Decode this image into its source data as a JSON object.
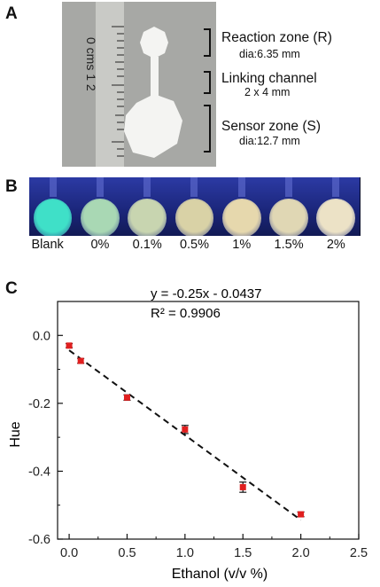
{
  "panels": {
    "a": "A",
    "b": "B",
    "c": "C"
  },
  "photo": {
    "ruler_text": "0 cms 1 2",
    "annotations": [
      {
        "title": "Reaction zone (R)",
        "sub": "dia:6.35 mm"
      },
      {
        "title": "Linking channel",
        "sub": "2 x 4 mm"
      },
      {
        "title": "Sensor zone (S)",
        "sub": "dia:12.7 mm"
      }
    ]
  },
  "vials": {
    "labels": [
      "Blank",
      "0%",
      "0.1%",
      "0.5%",
      "1%",
      "1.5%",
      "2%"
    ],
    "colors": [
      "#3fe0c8",
      "#a9d8b4",
      "#c8d5b0",
      "#d9d2a6",
      "#e6d8ad",
      "#e0d7b4",
      "#ece2c6"
    ]
  },
  "chart_data": {
    "type": "scatter",
    "title": "",
    "xlabel": "Ethanol (v/v %)",
    "ylabel": "Hue",
    "xlim": [
      -0.1,
      2.5
    ],
    "ylim": [
      -0.6,
      0.1
    ],
    "xticks": [
      "0.0",
      "0.5",
      "1.0",
      "1.5",
      "2.0",
      "2.5"
    ],
    "yticks": [
      "0.0",
      "-0.2",
      "-0.4",
      "-0.6"
    ],
    "points": [
      {
        "x": 0.0,
        "y": -0.03,
        "err": 0.006
      },
      {
        "x": 0.1,
        "y": -0.075,
        "err": 0.007
      },
      {
        "x": 0.5,
        "y": -0.183,
        "err": 0.008
      },
      {
        "x": 1.0,
        "y": -0.277,
        "err": 0.012
      },
      {
        "x": 1.5,
        "y": -0.447,
        "err": 0.015
      },
      {
        "x": 2.0,
        "y": -0.527,
        "err": 0.007
      }
    ],
    "fit": {
      "slope": -0.25,
      "intercept": -0.0437,
      "x_range": [
        0.0,
        2.0
      ]
    },
    "equation": "y = -0.25x - 0.0437",
    "r_squared": "R² = 0.9906",
    "marker_color": "#e01f1f"
  }
}
